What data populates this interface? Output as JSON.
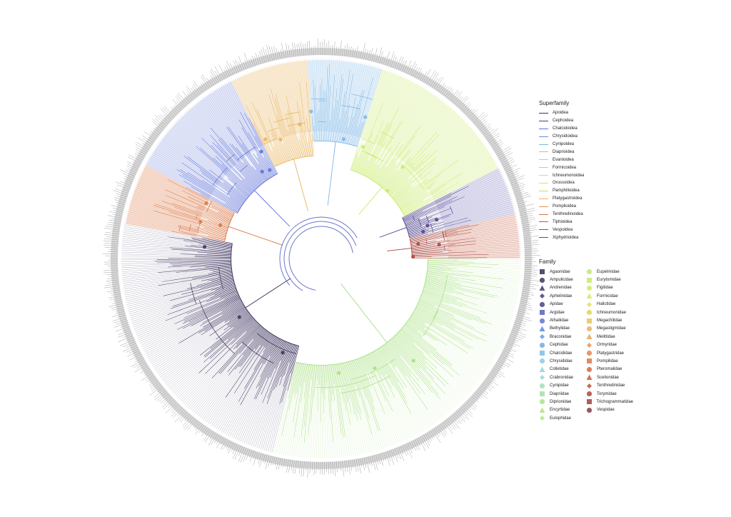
{
  "superfamily_legend": {
    "title": "Superfamily",
    "items": [
      {
        "label": "Apoidea",
        "color": "#3a2f5b"
      },
      {
        "label": "Cephoidea",
        "color": "#4b3f8a"
      },
      {
        "label": "Chalcidoidea",
        "color": "#5b6fd6"
      },
      {
        "label": "Chrysidoidea",
        "color": "#5f8fe0"
      },
      {
        "label": "Cynipoidea",
        "color": "#79b4e6"
      },
      {
        "label": "Diaprioidea",
        "color": "#8ecde0"
      },
      {
        "label": "Evanioidea",
        "color": "#9ed9c8"
      },
      {
        "label": "Formicoidea",
        "color": "#a6e07f"
      },
      {
        "label": "Ichneumonoidea",
        "color": "#c7ea66"
      },
      {
        "label": "Orussoidea",
        "color": "#dfe35a"
      },
      {
        "label": "Pamphilioidea",
        "color": "#e8cf5b"
      },
      {
        "label": "Platygastroidea",
        "color": "#e8b35a"
      },
      {
        "label": "Pompiloidea",
        "color": "#e3924e"
      },
      {
        "label": "Tenthredinoidea",
        "color": "#d8733f"
      },
      {
        "label": "Tiphioidea",
        "color": "#c4573a"
      },
      {
        "label": "Vespoidea",
        "color": "#a8443b"
      },
      {
        "label": "Xiphydrioidea",
        "color": "#8c3b4a"
      }
    ]
  },
  "family_legend": {
    "title": "Family",
    "items": [
      {
        "label": "Agaonidae",
        "shape": "square",
        "color": "#3a2f5b"
      },
      {
        "label": "Ampulicidae",
        "shape": "circle",
        "color": "#3d3264"
      },
      {
        "label": "Andrenidae",
        "shape": "triangle",
        "color": "#41376e"
      },
      {
        "label": "Aphelinidae",
        "shape": "diamond",
        "color": "#463c7a"
      },
      {
        "label": "Apidae",
        "shape": "circle",
        "color": "#4a4286"
      },
      {
        "label": "Argidae",
        "shape": "square",
        "color": "#5262b8"
      },
      {
        "label": "Athaliidae",
        "shape": "circle",
        "color": "#5a76cf"
      },
      {
        "label": "Bethylidae",
        "shape": "triangle",
        "color": "#5f86dc"
      },
      {
        "label": "Braconidae",
        "shape": "diamond",
        "color": "#6a99e2"
      },
      {
        "label": "Cephidae",
        "shape": "circle",
        "color": "#73a9e4"
      },
      {
        "label": "Chalcididae",
        "shape": "square",
        "color": "#7ebee6"
      },
      {
        "label": "Chrysididae",
        "shape": "circle",
        "color": "#88cde3"
      },
      {
        "label": "Colletidae",
        "shape": "triangle",
        "color": "#8fd6d8"
      },
      {
        "label": "Crabronidae",
        "shape": "diamond",
        "color": "#96dccb"
      },
      {
        "label": "Cynipidae",
        "shape": "circle",
        "color": "#9ddfb8"
      },
      {
        "label": "Diapriidae",
        "shape": "square",
        "color": "#a3e1a2"
      },
      {
        "label": "Diprionidae",
        "shape": "circle",
        "color": "#a8e28e"
      },
      {
        "label": "Encyrtidae",
        "shape": "triangle",
        "color": "#ade482"
      },
      {
        "label": "Eulophidae",
        "shape": "diamond",
        "color": "#b4e67a"
      },
      {
        "label": "Eupelmidae",
        "shape": "circle",
        "color": "#bce872"
      },
      {
        "label": "Eurytomidae",
        "shape": "square",
        "color": "#c6ea69"
      },
      {
        "label": "Figitidae",
        "shape": "circle",
        "color": "#d2e963"
      },
      {
        "label": "Formicidae",
        "shape": "triangle",
        "color": "#dce65e"
      },
      {
        "label": "Halictidae",
        "shape": "diamond",
        "color": "#e2dd5b"
      },
      {
        "label": "Ichneumonidae",
        "shape": "circle",
        "color": "#e6d05a"
      },
      {
        "label": "Megachilidae",
        "shape": "square",
        "color": "#e8c25a"
      },
      {
        "label": "Megastigmidae",
        "shape": "circle",
        "color": "#e8b35a"
      },
      {
        "label": "Melittidae",
        "shape": "triangle",
        "color": "#e7a457"
      },
      {
        "label": "Ormyridae",
        "shape": "diamond",
        "color": "#e59552"
      },
      {
        "label": "Platygastridae",
        "shape": "circle",
        "color": "#e1874c"
      },
      {
        "label": "Pompilidae",
        "shape": "square",
        "color": "#db7845"
      },
      {
        "label": "Pteromalidae",
        "shape": "circle",
        "color": "#d26b40"
      },
      {
        "label": "Scelionidae",
        "shape": "triangle",
        "color": "#c75f3d"
      },
      {
        "label": "Tenthredinidae",
        "shape": "diamond",
        "color": "#ba533b"
      },
      {
        "label": "Torymidae",
        "shape": "circle",
        "color": "#ab4a3c"
      },
      {
        "label": "Trichogrammatidae",
        "shape": "square",
        "color": "#9b4240"
      },
      {
        "label": "Vespidae",
        "shape": "circle",
        "color": "#8a3b47"
      }
    ]
  },
  "tree": {
    "type": "circular-phylogeny",
    "tip_count": 640,
    "clades": [
      {
        "name": "Formicoidea",
        "color": "#a6e07f"
      },
      {
        "name": "Apoidea",
        "color": "#3a2f5b"
      },
      {
        "name": "Tenthredinoidea",
        "color": "#d8733f"
      },
      {
        "name": "Chalcidoidea",
        "color": "#5b6fd6"
      },
      {
        "name": "Platygastroidea",
        "color": "#e8b35a"
      },
      {
        "name": "Cynipoidea",
        "color": "#79b4e6"
      },
      {
        "name": "Ichneumonoidea",
        "color": "#c7ea66"
      },
      {
        "name": "Cephoidea",
        "color": "#4b3f8a"
      },
      {
        "name": "Vespoidea",
        "color": "#a8443b"
      }
    ]
  }
}
